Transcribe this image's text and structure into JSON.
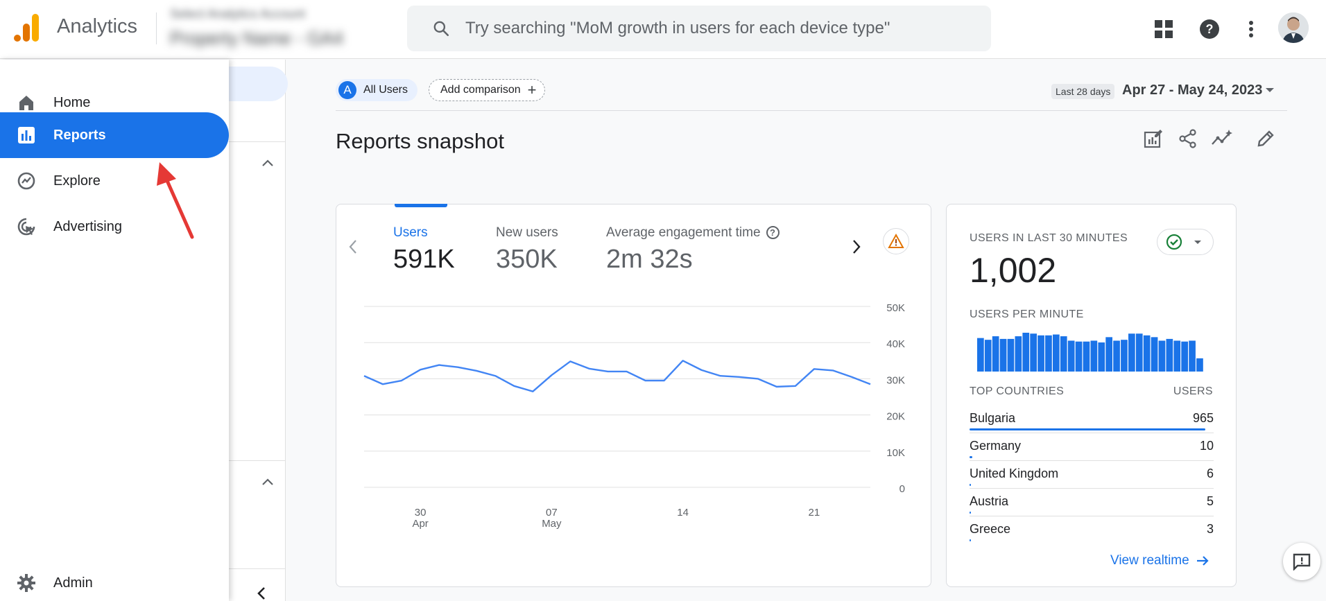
{
  "app": {
    "name": "Analytics",
    "account_line1": "Select Analytics Account",
    "account_line2": "Property Name - GA4"
  },
  "search": {
    "placeholder": "Try searching \"MoM growth in users for each device type\""
  },
  "nav": {
    "items": [
      {
        "label": "Home",
        "icon": "home-icon"
      },
      {
        "label": "Reports",
        "icon": "reports-icon",
        "active": true
      },
      {
        "label": "Explore",
        "icon": "explore-icon"
      },
      {
        "label": "Advertising",
        "icon": "advertising-icon"
      }
    ],
    "admin": {
      "label": "Admin",
      "icon": "gear-icon"
    }
  },
  "toolbar": {
    "comparison_badge": "A",
    "comparison_label": "All Users",
    "add_comparison": "Add comparison",
    "date_tag": "Last 28 days",
    "date_range": "Apr 27 - May 24, 2023"
  },
  "page": {
    "title": "Reports snapshot"
  },
  "metrics": [
    {
      "label": "Users",
      "value": "591K",
      "selected": true
    },
    {
      "label": "New users",
      "value": "350K"
    },
    {
      "label": "Average engagement time",
      "value": "2m 32s",
      "help": "?"
    }
  ],
  "chart_data": {
    "type": "line",
    "title": "",
    "xlabel": "",
    "ylabel": "",
    "ylim": [
      0,
      50000
    ],
    "y_ticks": [
      "50K",
      "40K",
      "30K",
      "20K",
      "10K",
      "0"
    ],
    "x_ticks": [
      {
        "day": "30",
        "month": "Apr"
      },
      {
        "day": "07",
        "month": "May"
      },
      {
        "day": "14",
        "month": ""
      },
      {
        "day": "21",
        "month": ""
      }
    ],
    "x": [
      "2023-04-27",
      "2023-04-28",
      "2023-04-29",
      "2023-04-30",
      "2023-05-01",
      "2023-05-02",
      "2023-05-03",
      "2023-05-04",
      "2023-05-05",
      "2023-05-06",
      "2023-05-07",
      "2023-05-08",
      "2023-05-09",
      "2023-05-10",
      "2023-05-11",
      "2023-05-12",
      "2023-05-13",
      "2023-05-14",
      "2023-05-15",
      "2023-05-16",
      "2023-05-17",
      "2023-05-18",
      "2023-05-19",
      "2023-05-20",
      "2023-05-21",
      "2023-05-22",
      "2023-05-23",
      "2023-05-24"
    ],
    "series": [
      {
        "values": [
          30800,
          28500,
          29500,
          32500,
          33800,
          33200,
          32200,
          30800,
          28000,
          26500,
          31000,
          34800,
          32800,
          32000,
          32000,
          29500,
          29500,
          35000,
          32400,
          30800,
          30500,
          30000,
          27800,
          28000,
          32700,
          32300,
          30500,
          28500
        ],
        "color": "#4285f4"
      }
    ],
    "grid": true
  },
  "realtime": {
    "heading": "USERS IN LAST 30 MINUTES",
    "count": "1,002",
    "per_minute_heading": "USERS PER MINUTE",
    "per_minute": [
      38,
      36,
      40,
      37,
      37,
      40,
      44,
      43,
      41,
      41,
      42,
      40,
      35,
      34,
      34,
      35,
      33,
      39,
      35,
      36,
      43,
      43,
      41,
      39,
      35,
      37,
      35,
      34,
      35,
      15
    ],
    "countries_heading": "TOP COUNTRIES",
    "users_heading": "USERS",
    "countries": [
      {
        "name": "Bulgaria",
        "users": "965",
        "share": 0.965
      },
      {
        "name": "Germany",
        "users": "10",
        "share": 0.01
      },
      {
        "name": "United Kingdom",
        "users": "6",
        "share": 0.006
      },
      {
        "name": "Austria",
        "users": "5",
        "share": 0.005
      },
      {
        "name": "Greece",
        "users": "3",
        "share": 0.003
      }
    ],
    "view_link": "View realtime"
  },
  "colors": {
    "accent": "#1a73e8",
    "line": "#4285f4",
    "ok": "#188038",
    "warn": "#e37400",
    "logo_orange": "#f9ab00",
    "logo_dark": "#e37400"
  }
}
